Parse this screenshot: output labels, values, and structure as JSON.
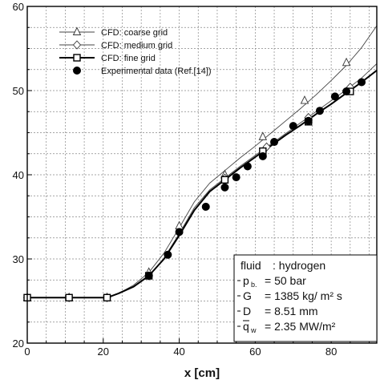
{
  "chart_data": {
    "type": "line",
    "xlabel": "x [cm]",
    "ylabel": "",
    "xlim": [
      0,
      92
    ],
    "ylim": [
      20,
      60
    ],
    "xticks": [
      0,
      20,
      40,
      60,
      80
    ],
    "yticks": [
      20,
      30,
      40,
      50,
      60
    ],
    "grid": true,
    "legend_position": "top-left",
    "series": [
      {
        "name": "CFD: coarse grid",
        "style": "thin-line",
        "marker": "triangle",
        "x": [
          0,
          11,
          21,
          24,
          28,
          32,
          36,
          40,
          44,
          48,
          52,
          56,
          60,
          64,
          68,
          72,
          76,
          80,
          84,
          88,
          92
        ],
        "y": [
          25.4,
          25.4,
          25.4,
          25.9,
          26.9,
          28.4,
          30.7,
          33.7,
          36.8,
          39.0,
          40.5,
          42.0,
          43.4,
          44.9,
          46.4,
          47.9,
          49.5,
          51.2,
          53.0,
          55.1,
          57.7
        ],
        "marker_x": [
          0,
          11,
          21,
          32,
          40,
          52,
          62,
          73,
          84
        ],
        "marker_y": [
          25.4,
          25.4,
          25.4,
          28.4,
          33.9,
          40.0,
          44.5,
          48.8,
          53.3
        ]
      },
      {
        "name": "CFD: medium grid",
        "style": "thin-line",
        "marker": "diamond",
        "x": [
          0,
          11,
          21,
          24,
          28,
          32,
          36,
          40,
          44,
          48,
          52,
          56,
          60,
          64,
          68,
          72,
          76,
          80,
          84,
          88,
          92
        ],
        "y": [
          25.4,
          25.4,
          25.4,
          25.9,
          26.7,
          28.0,
          30.1,
          33.0,
          36.1,
          38.2,
          39.6,
          41.0,
          42.3,
          43.6,
          44.9,
          46.2,
          47.5,
          48.8,
          50.1,
          51.5,
          53.2
        ],
        "marker_x": [
          0,
          11,
          21,
          32,
          52,
          63,
          74,
          85
        ],
        "marker_y": [
          25.4,
          25.4,
          25.4,
          28.0,
          39.6,
          43.3,
          46.8,
          50.4
        ]
      },
      {
        "name": "CFD: fine grid",
        "style": "thick-line",
        "marker": "square",
        "x": [
          0,
          11,
          21,
          24,
          28,
          32,
          36,
          40,
          44,
          48,
          52,
          56,
          60,
          64,
          68,
          72,
          76,
          80,
          84,
          88,
          92
        ],
        "y": [
          25.4,
          25.4,
          25.4,
          25.9,
          26.7,
          28.0,
          30.0,
          32.8,
          35.8,
          38.0,
          39.4,
          40.8,
          42.1,
          43.4,
          44.7,
          45.9,
          47.2,
          48.4,
          49.7,
          51.0,
          52.4
        ],
        "marker_x": [
          0,
          11,
          21,
          32,
          52,
          62,
          74,
          85
        ],
        "marker_y": [
          25.4,
          25.4,
          25.4,
          28.0,
          39.4,
          42.8,
          46.3,
          49.9
        ]
      },
      {
        "name": "Experimental data (Ref.[14])",
        "style": "markers-only",
        "marker": "filled-circle",
        "x": [
          32,
          37,
          40,
          47,
          52,
          55,
          58,
          62,
          65,
          70,
          74,
          77,
          81,
          84,
          88
        ],
        "y": [
          28.0,
          30.5,
          33.2,
          36.2,
          38.5,
          39.7,
          41.0,
          42.2,
          43.9,
          45.8,
          46.4,
          47.6,
          49.3,
          49.9,
          51.0
        ]
      }
    ],
    "annotation": {
      "fluid_label": "fluid",
      "fluid_value": ": hydrogen",
      "params": [
        {
          "symbol": "p",
          "sub": "b.",
          "value": "= 50 bar"
        },
        {
          "symbol": "G",
          "sub": "",
          "value": "= 1385 kg/ m² s"
        },
        {
          "symbol": "D",
          "sub": "",
          "value": "= 8.51 mm"
        },
        {
          "symbol": "q",
          "sub": "w",
          "value": "= 2.35 MW/m²"
        }
      ]
    }
  }
}
